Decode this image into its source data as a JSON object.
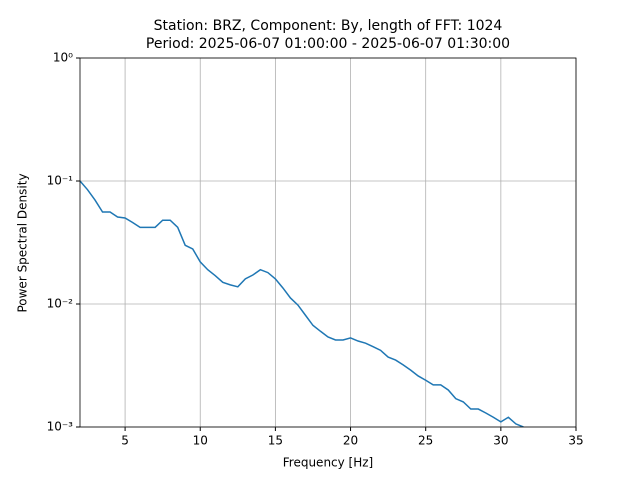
{
  "chart_data": {
    "type": "line",
    "title": "Station: BRZ, Component: By, length of FFT: 1024",
    "subtitle": "Period: 2025-06-07 01:00:00 - 2025-06-07 01:30:00",
    "xlabel": "Frequency [Hz]",
    "ylabel": "Power Spectral Density",
    "log_y": true,
    "grid": true,
    "xlim": [
      2,
      35
    ],
    "xticks": [
      5,
      10,
      15,
      20,
      25,
      30,
      35
    ],
    "ylim": [
      0.001,
      1
    ],
    "yticks": [
      {
        "value": 0.001,
        "label": "10⁻³"
      },
      {
        "value": 0.01,
        "label": "10⁻²"
      },
      {
        "value": 0.1,
        "label": "10⁻¹"
      },
      {
        "value": 1,
        "label": "10⁰"
      }
    ],
    "x": [
      2,
      2.5,
      3,
      3.5,
      4,
      4.5,
      5,
      5.5,
      6,
      6.5,
      7,
      7.5,
      8,
      8.5,
      9,
      9.5,
      10,
      10.5,
      11,
      11.5,
      12,
      12.5,
      13,
      13.5,
      14,
      14.5,
      15,
      15.5,
      16,
      16.5,
      17,
      17.5,
      18,
      18.5,
      19,
      19.5,
      20,
      20.5,
      21,
      21.5,
      22,
      22.5,
      23,
      23.5,
      24,
      24.5,
      25,
      25.5,
      26,
      26.5,
      27,
      27.5,
      28,
      28.5,
      29,
      29.5,
      30,
      30.5,
      31,
      31.5
    ],
    "series": [
      {
        "color": "#1f77b4",
        "values": [
          0.1,
          0.085,
          0.07,
          0.056,
          0.056,
          0.051,
          0.05,
          0.046,
          0.042,
          0.042,
          0.042,
          0.048,
          0.048,
          0.042,
          0.03,
          0.028,
          0.022,
          0.019,
          0.017,
          0.015,
          0.0143,
          0.0138,
          0.016,
          0.0172,
          0.019,
          0.018,
          0.016,
          0.0135,
          0.0112,
          0.0098,
          0.0081,
          0.0067,
          0.006,
          0.0054,
          0.0051,
          0.0051,
          0.0053,
          0.005,
          0.0048,
          0.0045,
          0.0042,
          0.0037,
          0.0035,
          0.0032,
          0.0029,
          0.0026,
          0.0024,
          0.0022,
          0.0022,
          0.002,
          0.0017,
          0.0016,
          0.0014,
          0.0014,
          0.0013,
          0.0012,
          0.0011,
          0.0012,
          0.00106,
          0.001
        ]
      }
    ]
  }
}
